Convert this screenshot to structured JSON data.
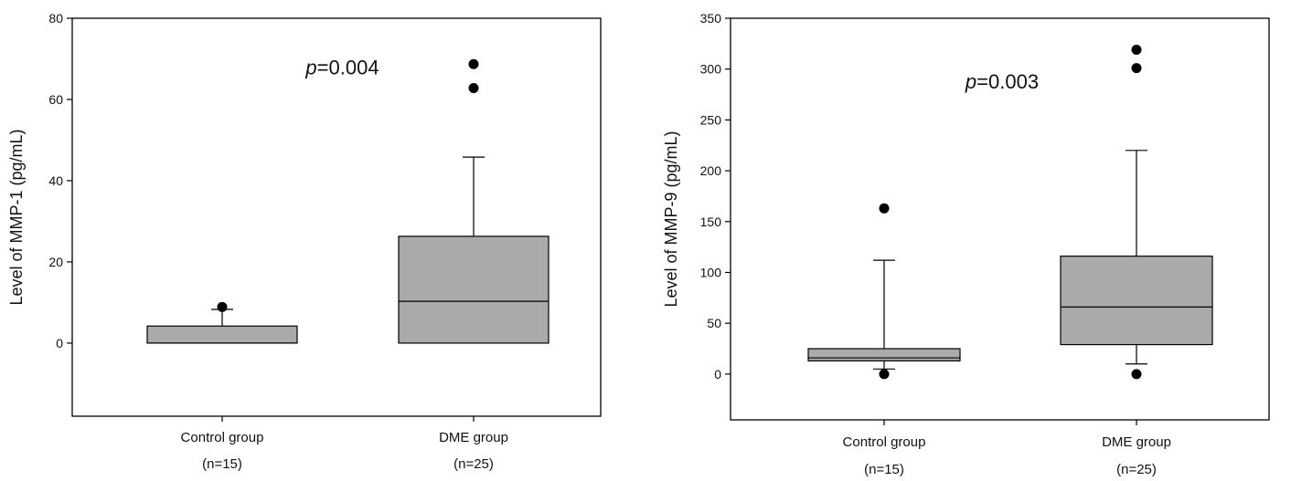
{
  "chart_data": [
    {
      "type": "box",
      "ylabel": "Level of MMP-1 (pg/mL)",
      "ylim": [
        -18,
        80
      ],
      "yticks": [
        0,
        20,
        40,
        60,
        80
      ],
      "annotation": {
        "italic": "p",
        "rest": "=0.004",
        "x": 0.5,
        "y": 68
      },
      "categories": [
        {
          "label": "Control group",
          "sublabel": "(n=15)",
          "q1": 0,
          "median": 0,
          "q3": 4.2,
          "whisker_low": 0,
          "whisker_high": 8.3,
          "outliers": [
            8.9
          ]
        },
        {
          "label": "DME group",
          "sublabel": "(n=25)",
          "q1": 0,
          "median": 10.3,
          "q3": 26.3,
          "whisker_low": 0,
          "whisker_high": 45.8,
          "outliers": [
            62.8,
            68.7
          ]
        }
      ],
      "box_color": "#aaaaaa"
    },
    {
      "type": "box",
      "ylabel": "Level of MMP-9 (pg/mL)",
      "ylim": [
        -45,
        350
      ],
      "yticks": [
        0,
        50,
        100,
        150,
        200,
        250,
        300,
        350
      ],
      "annotation": {
        "italic": "p",
        "rest": "=0.003",
        "x": 0.5,
        "y": 288
      },
      "categories": [
        {
          "label": "Control group",
          "sublabel": "(n=15)",
          "q1": 13,
          "median": 16,
          "q3": 25,
          "whisker_low": 5,
          "whisker_high": 112,
          "outliers": [
            0,
            163
          ]
        },
        {
          "label": "DME group",
          "sublabel": "(n=25)",
          "q1": 29,
          "median": 66,
          "q3": 116,
          "whisker_low": 10,
          "whisker_high": 220,
          "outliers": [
            0,
            301,
            319
          ]
        }
      ],
      "box_color": "#aaaaaa"
    }
  ]
}
